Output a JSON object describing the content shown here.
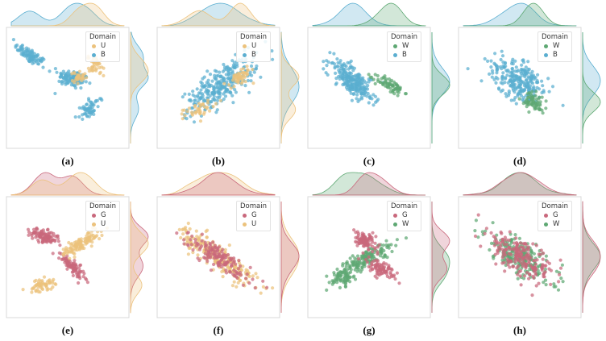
{
  "colors": {
    "B": "#5aaed0",
    "U": "#ecc27c",
    "W": "#5ea873",
    "G": "#c9687c"
  },
  "panels": [
    {
      "id": "a",
      "caption": "(a)",
      "legend_title": "Domain",
      "domains": [
        "U",
        "B"
      ],
      "series": [
        {
          "name": "B",
          "clusters": [
            [
              -0.8,
              0.7,
              0.35,
              0.12,
              -0.6,
              90
            ],
            [
              0.1,
              0.2,
              0.3,
              0.18,
              -0.3,
              120
            ],
            [
              0.45,
              -0.45,
              0.12,
              0.25,
              -0.7,
              60
            ]
          ]
        },
        {
          "name": "U",
          "clusters": [
            [
              0.6,
              0.5,
              0.14,
              0.22,
              0.8,
              40
            ],
            [
              0.25,
              0.25,
              0.15,
              0.12,
              0.4,
              30
            ]
          ]
        }
      ]
    },
    {
      "id": "b",
      "caption": "(b)",
      "legend_title": "Domain",
      "domains": [
        "U",
        "B"
      ],
      "series": [
        {
          "name": "B",
          "clusters": [
            [
              0.05,
              0.05,
              0.8,
              0.3,
              0.62,
              280
            ]
          ]
        },
        {
          "name": "U",
          "clusters": [
            [
              -0.4,
              -0.45,
              0.3,
              0.12,
              0.4,
              40
            ],
            [
              0.45,
              0.2,
              0.25,
              0.15,
              0.6,
              50
            ]
          ]
        }
      ]
    },
    {
      "id": "c",
      "caption": "(c)",
      "legend_title": "Domain",
      "domains": [
        "W",
        "B"
      ],
      "series": [
        {
          "name": "B",
          "clusters": [
            [
              -0.35,
              0.15,
              0.55,
              0.22,
              -0.75,
              240
            ]
          ]
        },
        {
          "name": "W",
          "clusters": [
            [
              0.45,
              0.05,
              0.3,
              0.12,
              -0.45,
              70
            ]
          ]
        }
      ]
    },
    {
      "id": "d",
      "caption": "(d)",
      "legend_title": "Domain",
      "domains": [
        "W",
        "B"
      ],
      "series": [
        {
          "name": "B",
          "clusters": [
            [
              0.0,
              0.15,
              0.6,
              0.35,
              -0.6,
              260
            ]
          ]
        },
        {
          "name": "W",
          "clusters": [
            [
              0.3,
              -0.3,
              0.25,
              0.15,
              -0.9,
              70
            ]
          ]
        }
      ]
    },
    {
      "id": "e",
      "caption": "(e)",
      "legend_title": "Domain",
      "domains": [
        "G",
        "U"
      ],
      "series": [
        {
          "name": "G",
          "clusters": [
            [
              -0.5,
              0.45,
              0.3,
              0.12,
              -0.3,
              110
            ],
            [
              0.1,
              -0.2,
              0.3,
              0.1,
              -0.8,
              90
            ]
          ]
        },
        {
          "name": "U",
          "clusters": [
            [
              0.3,
              0.3,
              0.45,
              0.12,
              0.55,
              110
            ],
            [
              -0.55,
              -0.6,
              0.25,
              0.12,
              0.2,
              60
            ]
          ]
        }
      ]
    },
    {
      "id": "f",
      "caption": "(f)",
      "legend_title": "Domain",
      "domains": [
        "G",
        "U"
      ],
      "series": [
        {
          "name": "U",
          "clusters": [
            [
              0.0,
              0.0,
              0.85,
              0.22,
              -0.62,
              240
            ]
          ]
        },
        {
          "name": "G",
          "clusters": [
            [
              0.0,
              0.0,
              0.8,
              0.2,
              -0.62,
              150
            ]
          ]
        }
      ]
    },
    {
      "id": "g",
      "caption": "(g)",
      "legend_title": "Domain",
      "domains": [
        "G",
        "W"
      ],
      "series": [
        {
          "name": "W",
          "clusters": [
            [
              -0.1,
              -0.05,
              0.7,
              0.15,
              0.55,
              170
            ],
            [
              -0.55,
              -0.45,
              0.2,
              0.15,
              0.0,
              50
            ]
          ]
        },
        {
          "name": "G",
          "clusters": [
            [
              -0.1,
              0.35,
              0.25,
              0.15,
              -0.4,
              100
            ],
            [
              0.25,
              -0.25,
              0.3,
              0.15,
              -0.7,
              90
            ]
          ]
        }
      ]
    },
    {
      "id": "h",
      "caption": "(h)",
      "legend_title": "Domain",
      "domains": [
        "G",
        "W"
      ],
      "series": [
        {
          "name": "W",
          "clusters": [
            [
              0.0,
              0.0,
              0.8,
              0.3,
              -0.6,
              230
            ]
          ]
        },
        {
          "name": "G",
          "clusters": [
            [
              0.0,
              0.0,
              0.75,
              0.28,
              -0.6,
              200
            ]
          ]
        }
      ]
    }
  ],
  "chart_data": {
    "type": "scatter",
    "title": "",
    "xlabel": "",
    "ylabel": "",
    "description_note": "2x4 grid of t-SNE style scatter plots with marginal density plots; each cluster = [center_x, center_y, spread_major, spread_minor, angle_rad, n_points] in normalized t-SNE units",
    "grid": false,
    "legend": "top-right",
    "xlim": [
      -1.2,
      1.2
    ],
    "ylim": [
      -1.2,
      1.2
    ]
  }
}
